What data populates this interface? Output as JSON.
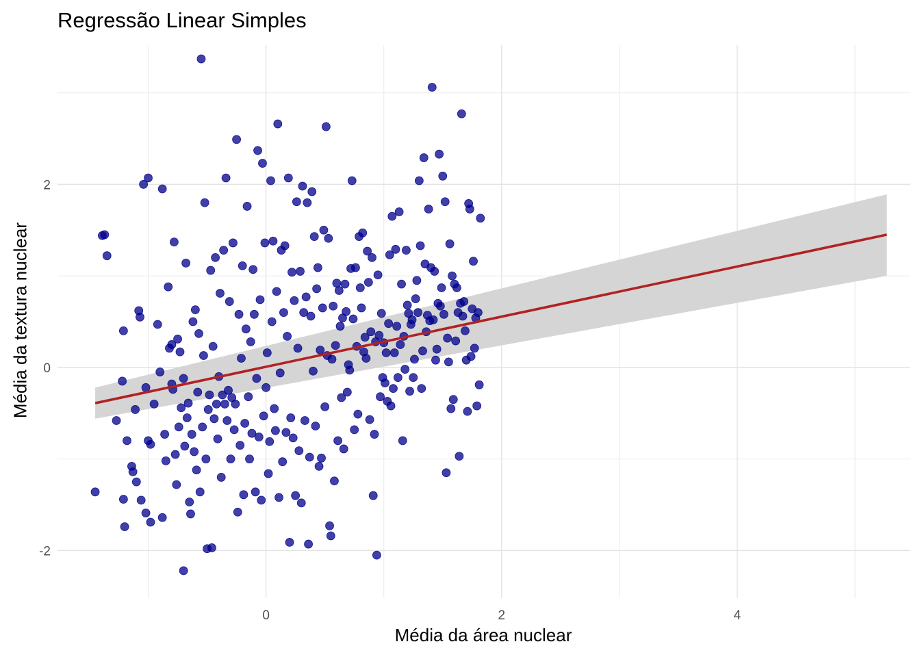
{
  "chart_data": {
    "type": "scatter",
    "title": "Regressão Linear Simples",
    "xlabel": "Média da área nuclear",
    "ylabel": "Média da textura nuclear",
    "xlim": [
      -1.77,
      5.47
    ],
    "ylim": [
      -2.52,
      3.52
    ],
    "x_ticks": [
      0,
      2,
      4
    ],
    "x_tick_labels": [
      "0",
      "2",
      "4"
    ],
    "y_ticks": [
      -2,
      0,
      2
    ],
    "y_tick_labels": [
      "-2",
      "0",
      "2"
    ],
    "grid": true,
    "legend": "none",
    "point_color": "#00008B",
    "points": [
      [
        -1.45,
        -1.36
      ],
      [
        -1.39,
        1.44
      ],
      [
        -1.37,
        1.45
      ],
      [
        -1.35,
        1.22
      ],
      [
        -1.27,
        -0.58
      ],
      [
        -1.22,
        -0.15
      ],
      [
        -1.21,
        0.4
      ],
      [
        -1.21,
        -1.44
      ],
      [
        -1.2,
        -1.74
      ],
      [
        -1.18,
        -0.8
      ],
      [
        -1.14,
        -1.08
      ],
      [
        -1.13,
        -1.14
      ],
      [
        -1.11,
        -0.46
      ],
      [
        -1.1,
        -1.25
      ],
      [
        -1.08,
        0.62
      ],
      [
        -1.07,
        0.55
      ],
      [
        -1.06,
        -1.45
      ],
      [
        -1.04,
        2.0
      ],
      [
        -1.02,
        -1.59
      ],
      [
        -1.02,
        -0.22
      ],
      [
        -1.0,
        2.07
      ],
      [
        -1.0,
        -0.8
      ],
      [
        -0.98,
        -1.69
      ],
      [
        -0.98,
        -0.84
      ],
      [
        -0.95,
        -0.4
      ],
      [
        -0.92,
        0.47
      ],
      [
        -0.9,
        -0.05
      ],
      [
        -0.88,
        1.95
      ],
      [
        -0.88,
        -1.64
      ],
      [
        -0.86,
        -0.73
      ],
      [
        -0.85,
        -1.02
      ],
      [
        -0.83,
        0.88
      ],
      [
        -0.82,
        0.21
      ],
      [
        -0.8,
        -0.18
      ],
      [
        -0.8,
        0.25
      ],
      [
        -0.79,
        -0.24
      ],
      [
        -0.78,
        1.37
      ],
      [
        -0.77,
        -0.95
      ],
      [
        -0.76,
        -1.28
      ],
      [
        -0.75,
        0.31
      ],
      [
        -0.74,
        -0.65
      ],
      [
        -0.73,
        0.17
      ],
      [
        -0.72,
        -0.44
      ],
      [
        -0.7,
        -2.22
      ],
      [
        -0.7,
        -0.12
      ],
      [
        -0.69,
        -0.86
      ],
      [
        -0.68,
        1.14
      ],
      [
        -0.67,
        -0.55
      ],
      [
        -0.66,
        -0.39
      ],
      [
        -0.65,
        -1.47
      ],
      [
        -0.64,
        -1.6
      ],
      [
        -0.63,
        -0.73
      ],
      [
        -0.62,
        0.5
      ],
      [
        -0.61,
        -0.92
      ],
      [
        -0.6,
        0.63
      ],
      [
        -0.59,
        -1.12
      ],
      [
        -0.58,
        -0.27
      ],
      [
        -0.57,
        0.37
      ],
      [
        -0.56,
        -1.36
      ],
      [
        -0.55,
        3.37
      ],
      [
        -0.54,
        -0.65
      ],
      [
        -0.53,
        0.13
      ],
      [
        -0.52,
        1.8
      ],
      [
        -0.51,
        -1.0
      ],
      [
        -0.5,
        -1.98
      ],
      [
        -0.49,
        -0.46
      ],
      [
        -0.48,
        -0.3
      ],
      [
        -0.47,
        1.06
      ],
      [
        -0.46,
        -1.97
      ],
      [
        -0.45,
        0.23
      ],
      [
        -0.44,
        -0.56
      ],
      [
        -0.43,
        1.2
      ],
      [
        -0.42,
        -0.4
      ],
      [
        -0.41,
        -0.78
      ],
      [
        -0.4,
        -0.1
      ],
      [
        -0.39,
        0.81
      ],
      [
        -0.38,
        -1.2
      ],
      [
        -0.37,
        -0.3
      ],
      [
        -0.36,
        1.28
      ],
      [
        -0.35,
        -0.4
      ],
      [
        -0.34,
        2.07
      ],
      [
        -0.33,
        -0.58
      ],
      [
        -0.32,
        -0.25
      ],
      [
        -0.31,
        0.72
      ],
      [
        -0.3,
        -1.0
      ],
      [
        -0.29,
        -0.33
      ],
      [
        -0.28,
        1.36
      ],
      [
        -0.27,
        -0.68
      ],
      [
        -0.26,
        -0.4
      ],
      [
        -0.25,
        2.49
      ],
      [
        -0.24,
        -1.58
      ],
      [
        -0.23,
        0.58
      ],
      [
        -0.22,
        -0.85
      ],
      [
        -0.21,
        0.1
      ],
      [
        -0.2,
        1.11
      ],
      [
        -0.19,
        -1.39
      ],
      [
        -0.18,
        -0.61
      ],
      [
        -0.17,
        0.42
      ],
      [
        -0.16,
        1.76
      ],
      [
        -0.15,
        -0.32
      ],
      [
        -0.14,
        -1.0
      ],
      [
        -0.13,
        0.28
      ],
      [
        -0.12,
        -0.72
      ],
      [
        -0.11,
        1.07
      ],
      [
        -0.1,
        0.58
      ],
      [
        -0.09,
        -1.36
      ],
      [
        -0.08,
        -0.12
      ],
      [
        -0.07,
        2.37
      ],
      [
        -0.06,
        -0.76
      ],
      [
        -0.05,
        0.74
      ],
      [
        -0.04,
        -1.45
      ],
      [
        -0.03,
        2.23
      ],
      [
        -0.02,
        -0.53
      ],
      [
        -0.01,
        1.36
      ],
      [
        0.0,
        -0.22
      ],
      [
        0.01,
        0.16
      ],
      [
        0.02,
        -1.16
      ],
      [
        0.03,
        -0.81
      ],
      [
        0.04,
        2.04
      ],
      [
        0.05,
        0.5
      ],
      [
        0.06,
        1.38
      ],
      [
        0.07,
        -0.45
      ],
      [
        0.08,
        -0.69
      ],
      [
        0.09,
        0.83
      ],
      [
        0.1,
        2.66
      ],
      [
        0.11,
        -1.42
      ],
      [
        0.12,
        -0.06
      ],
      [
        0.13,
        1.28
      ],
      [
        0.14,
        -1.03
      ],
      [
        0.15,
        0.6
      ],
      [
        0.16,
        1.33
      ],
      [
        0.17,
        -0.71
      ],
      [
        0.18,
        0.34
      ],
      [
        0.19,
        2.07
      ],
      [
        0.2,
        -1.91
      ],
      [
        0.21,
        -0.55
      ],
      [
        0.22,
        1.04
      ],
      [
        0.23,
        -0.77
      ],
      [
        0.24,
        0.73
      ],
      [
        0.25,
        -1.4
      ],
      [
        0.26,
        1.81
      ],
      [
        0.27,
        0.21
      ],
      [
        0.28,
        -0.91
      ],
      [
        0.29,
        1.05
      ],
      [
        0.3,
        -1.48
      ],
      [
        0.31,
        1.98
      ],
      [
        0.32,
        0.6
      ],
      [
        0.33,
        -0.58
      ],
      [
        0.34,
        0.77
      ],
      [
        0.35,
        1.8
      ],
      [
        0.36,
        -1.93
      ],
      [
        0.37,
        -0.98
      ],
      [
        0.38,
        0.56
      ],
      [
        0.39,
        1.92
      ],
      [
        0.4,
        -0.04
      ],
      [
        0.41,
        1.43
      ],
      [
        0.42,
        -0.64
      ],
      [
        0.43,
        0.86
      ],
      [
        0.44,
        1.09
      ],
      [
        0.45,
        -1.08
      ],
      [
        0.46,
        0.19
      ],
      [
        0.47,
        -0.99
      ],
      [
        0.48,
        0.65
      ],
      [
        0.49,
        1.5
      ],
      [
        0.5,
        -0.43
      ],
      [
        0.51,
        2.63
      ],
      [
        0.52,
        0.13
      ],
      [
        0.53,
        1.41
      ],
      [
        0.54,
        -1.73
      ],
      [
        0.55,
        -1.84
      ],
      [
        0.56,
        0.09
      ],
      [
        0.57,
        0.67
      ],
      [
        0.58,
        -1.24
      ],
      [
        0.59,
        0.24
      ],
      [
        0.6,
        0.92
      ],
      [
        0.61,
        -0.8
      ],
      [
        0.62,
        0.84
      ],
      [
        0.63,
        0.45
      ],
      [
        0.64,
        -0.33
      ],
      [
        0.65,
        0.54
      ],
      [
        0.66,
        -0.89
      ],
      [
        0.67,
        0.91
      ],
      [
        0.68,
        0.61
      ],
      [
        0.69,
        -0.27
      ],
      [
        0.7,
        0.03
      ],
      [
        0.71,
        -0.03
      ],
      [
        0.72,
        1.08
      ],
      [
        0.73,
        2.04
      ],
      [
        0.74,
        0.53
      ],
      [
        0.75,
        -0.68
      ],
      [
        0.76,
        1.09
      ],
      [
        0.77,
        0.23
      ],
      [
        0.78,
        -0.51
      ],
      [
        0.79,
        1.43
      ],
      [
        0.8,
        0.87
      ],
      [
        0.81,
        0.65
      ],
      [
        0.82,
        1.47
      ],
      [
        0.83,
        0.17
      ],
      [
        0.84,
        0.33
      ],
      [
        0.85,
        0.1
      ],
      [
        0.86,
        1.27
      ],
      [
        0.87,
        0.93
      ],
      [
        0.88,
        -0.57
      ],
      [
        0.89,
        0.39
      ],
      [
        0.9,
        1.2
      ],
      [
        0.91,
        -1.4
      ],
      [
        0.92,
        -0.73
      ],
      [
        0.93,
        0.28
      ],
      [
        0.94,
        -2.05
      ],
      [
        0.95,
        1.01
      ],
      [
        0.96,
        0.35
      ],
      [
        0.97,
        -0.32
      ],
      [
        0.98,
        0.59
      ],
      [
        0.99,
        -0.11
      ],
      [
        1.0,
        0.27
      ],
      [
        1.01,
        -0.17
      ],
      [
        1.02,
        0.16
      ],
      [
        1.03,
        -0.37
      ],
      [
        1.04,
        0.48
      ],
      [
        1.05,
        1.23
      ],
      [
        1.06,
        -0.42
      ],
      [
        1.07,
        1.65
      ],
      [
        1.08,
        -0.23
      ],
      [
        1.09,
        0.16
      ],
      [
        1.1,
        1.29
      ],
      [
        1.11,
        0.45
      ],
      [
        1.12,
        -0.11
      ],
      [
        1.13,
        1.7
      ],
      [
        1.14,
        0.25
      ],
      [
        1.15,
        0.91
      ],
      [
        1.16,
        -0.8
      ],
      [
        1.17,
        0.34
      ],
      [
        1.18,
        -0.02
      ],
      [
        1.19,
        1.28
      ],
      [
        1.2,
        0.68
      ],
      [
        1.21,
        0.59
      ],
      [
        1.22,
        -0.26
      ],
      [
        1.23,
        0.47
      ],
      [
        1.24,
        0.52
      ],
      [
        1.25,
        -0.11
      ],
      [
        1.26,
        0.09
      ],
      [
        1.27,
        0.75
      ],
      [
        1.28,
        0.95
      ],
      [
        1.29,
        0.6
      ],
      [
        1.3,
        2.04
      ],
      [
        1.31,
        1.33
      ],
      [
        1.32,
        -0.23
      ],
      [
        1.33,
        0.18
      ],
      [
        1.34,
        2.29
      ],
      [
        1.35,
        1.13
      ],
      [
        1.36,
        0.39
      ],
      [
        1.37,
        0.57
      ],
      [
        1.38,
        1.73
      ],
      [
        1.39,
        0.51
      ],
      [
        1.4,
        1.09
      ],
      [
        1.41,
        3.06
      ],
      [
        1.42,
        0.52
      ],
      [
        1.43,
        1.05
      ],
      [
        1.44,
        0.08
      ],
      [
        1.45,
        0.2
      ],
      [
        1.46,
        0.7
      ],
      [
        1.47,
        2.33
      ],
      [
        1.48,
        0.67
      ],
      [
        1.49,
        0.87
      ],
      [
        1.5,
        2.09
      ],
      [
        1.51,
        0.58
      ],
      [
        1.52,
        1.81
      ],
      [
        1.53,
        -1.15
      ],
      [
        1.54,
        0.32
      ],
      [
        1.55,
        0.06
      ],
      [
        1.56,
        1.35
      ],
      [
        1.57,
        -0.45
      ],
      [
        1.58,
        1.0
      ],
      [
        1.59,
        -0.35
      ],
      [
        1.6,
        0.91
      ],
      [
        1.61,
        0.29
      ],
      [
        1.62,
        0.87
      ],
      [
        1.63,
        0.6
      ],
      [
        1.64,
        -0.97
      ],
      [
        1.65,
        0.7
      ],
      [
        1.66,
        2.77
      ],
      [
        1.67,
        0.56
      ],
      [
        1.68,
        0.72
      ],
      [
        1.69,
        0.4
      ],
      [
        1.7,
        0.08
      ],
      [
        1.71,
        -0.48
      ],
      [
        1.72,
        1.79
      ],
      [
        1.73,
        1.73
      ],
      [
        1.74,
        0.12
      ],
      [
        1.75,
        0.64
      ],
      [
        1.76,
        1.16
      ],
      [
        1.77,
        0.21
      ],
      [
        1.78,
        0.54
      ],
      [
        1.79,
        -0.42
      ],
      [
        1.8,
        0.6
      ],
      [
        1.81,
        -0.19
      ],
      [
        1.82,
        1.63
      ]
    ]
  },
  "regression": {
    "line_color": "#B22222",
    "band_color": "#D3D3D3",
    "x_start": -1.45,
    "x_end": 5.27,
    "y_start": -0.39,
    "y_end": 1.45,
    "ci_start": [
      -0.56,
      -0.22
    ],
    "ci_end": [
      1.0,
      1.89
    ]
  }
}
